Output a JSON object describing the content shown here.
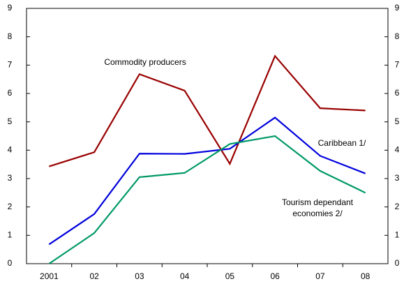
{
  "chart_data": {
    "type": "line",
    "categories": [
      "2001",
      "02",
      "03",
      "04",
      "05",
      "06",
      "07",
      "08"
    ],
    "series": [
      {
        "name": "Commodity producers",
        "color": "#990000",
        "values": [
          3.43,
          3.93,
          6.68,
          6.1,
          3.52,
          7.32,
          5.48,
          5.4
        ]
      },
      {
        "name": "Caribbean 1/",
        "color": "#0000dd",
        "values": [
          0.68,
          1.75,
          3.88,
          3.87,
          4.05,
          5.15,
          3.8,
          3.18
        ]
      },
      {
        "name": "Tourism dependant economies 2/",
        "color": "#009966",
        "values": [
          -0.05,
          1.08,
          3.05,
          3.2,
          4.22,
          4.5,
          3.27,
          2.5
        ],
        "axis": "y2"
      }
    ],
    "ylim": [
      0,
      9
    ],
    "yticks": [
      0,
      1,
      2,
      3,
      4,
      5,
      6,
      7,
      8,
      9
    ],
    "y2lim": [
      0,
      9
    ],
    "y2ticks": [
      0,
      1,
      2,
      3,
      4,
      5,
      6,
      7,
      8,
      9
    ]
  }
}
